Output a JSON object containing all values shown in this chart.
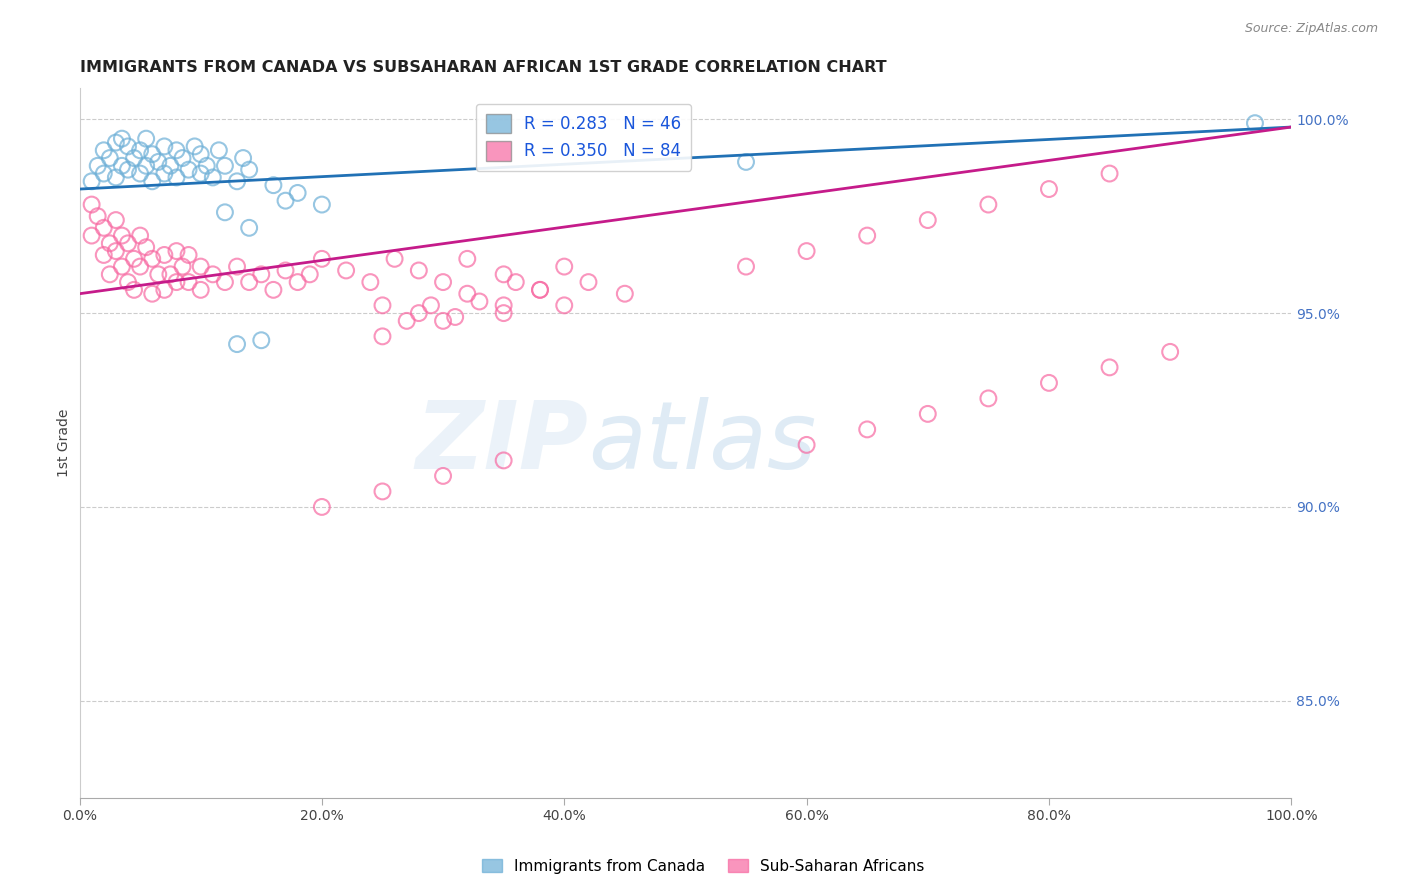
{
  "title": "IMMIGRANTS FROM CANADA VS SUBSAHARAN AFRICAN 1ST GRADE CORRELATION CHART",
  "source": "Source: ZipAtlas.com",
  "ylabel": "1st Grade",
  "legend_labels": [
    "Immigrants from Canada",
    "Sub-Saharan Africans"
  ],
  "legend_r_n": [
    {
      "r": 0.283,
      "n": 46
    },
    {
      "r": 0.35,
      "n": 84
    }
  ],
  "blue_color": "#6baed6",
  "pink_color": "#f768a1",
  "blue_line_color": "#2171b5",
  "pink_line_color": "#c51b8a",
  "watermark_zip": "ZIP",
  "watermark_atlas": "atlas",
  "xlim": [
    0.0,
    1.0
  ],
  "ylim": [
    0.825,
    1.008
  ],
  "right_yticks": [
    0.85,
    0.9,
    0.95,
    1.0
  ],
  "right_yticklabels": [
    "85.0%",
    "90.0%",
    "95.0%",
    "100.0%"
  ],
  "xtick_labels": [
    "0.0%",
    "20.0%",
    "40.0%",
    "60.0%",
    "80.0%",
    "100.0%"
  ],
  "xtick_values": [
    0.0,
    0.2,
    0.4,
    0.6,
    0.8,
    1.0
  ],
  "blue_x": [
    0.01,
    0.015,
    0.02,
    0.02,
    0.025,
    0.03,
    0.03,
    0.035,
    0.035,
    0.04,
    0.04,
    0.045,
    0.05,
    0.05,
    0.055,
    0.055,
    0.06,
    0.06,
    0.065,
    0.07,
    0.07,
    0.075,
    0.08,
    0.08,
    0.085,
    0.09,
    0.095,
    0.1,
    0.1,
    0.105,
    0.11,
    0.115,
    0.12,
    0.13,
    0.135,
    0.14,
    0.16,
    0.17,
    0.18,
    0.2,
    0.13,
    0.15,
    0.55,
    0.97,
    0.12,
    0.14
  ],
  "blue_y": [
    0.984,
    0.988,
    0.986,
    0.992,
    0.99,
    0.985,
    0.994,
    0.988,
    0.995,
    0.987,
    0.993,
    0.99,
    0.986,
    0.992,
    0.988,
    0.995,
    0.984,
    0.991,
    0.989,
    0.986,
    0.993,
    0.988,
    0.985,
    0.992,
    0.99,
    0.987,
    0.993,
    0.986,
    0.991,
    0.988,
    0.985,
    0.992,
    0.988,
    0.984,
    0.99,
    0.987,
    0.983,
    0.979,
    0.981,
    0.978,
    0.942,
    0.943,
    0.989,
    0.999,
    0.976,
    0.972
  ],
  "blue_trend_x": [
    0.0,
    1.0
  ],
  "blue_trend_y": [
    0.982,
    0.998
  ],
  "pink_x": [
    0.01,
    0.01,
    0.015,
    0.02,
    0.02,
    0.025,
    0.025,
    0.03,
    0.03,
    0.035,
    0.035,
    0.04,
    0.04,
    0.045,
    0.045,
    0.05,
    0.05,
    0.055,
    0.06,
    0.06,
    0.065,
    0.07,
    0.07,
    0.075,
    0.08,
    0.08,
    0.085,
    0.09,
    0.09,
    0.1,
    0.1,
    0.11,
    0.12,
    0.13,
    0.14,
    0.15,
    0.16,
    0.17,
    0.18,
    0.19,
    0.2,
    0.22,
    0.24,
    0.26,
    0.28,
    0.3,
    0.32,
    0.35,
    0.38,
    0.4,
    0.25,
    0.28,
    0.32,
    0.35,
    0.36,
    0.3,
    0.25,
    0.27,
    0.29,
    0.31,
    0.33,
    0.35,
    0.38,
    0.4,
    0.42,
    0.45,
    0.55,
    0.6,
    0.65,
    0.7,
    0.75,
    0.8,
    0.85,
    0.6,
    0.65,
    0.7,
    0.75,
    0.8,
    0.85,
    0.9,
    0.2,
    0.25,
    0.3,
    0.35
  ],
  "pink_y": [
    0.978,
    0.97,
    0.975,
    0.972,
    0.965,
    0.968,
    0.96,
    0.974,
    0.966,
    0.97,
    0.962,
    0.968,
    0.958,
    0.964,
    0.956,
    0.97,
    0.962,
    0.967,
    0.964,
    0.955,
    0.96,
    0.956,
    0.965,
    0.96,
    0.966,
    0.958,
    0.962,
    0.958,
    0.965,
    0.962,
    0.956,
    0.96,
    0.958,
    0.962,
    0.958,
    0.96,
    0.956,
    0.961,
    0.958,
    0.96,
    0.964,
    0.961,
    0.958,
    0.964,
    0.961,
    0.958,
    0.964,
    0.96,
    0.956,
    0.962,
    0.952,
    0.95,
    0.955,
    0.952,
    0.958,
    0.948,
    0.944,
    0.948,
    0.952,
    0.949,
    0.953,
    0.95,
    0.956,
    0.952,
    0.958,
    0.955,
    0.962,
    0.966,
    0.97,
    0.974,
    0.978,
    0.982,
    0.986,
    0.916,
    0.92,
    0.924,
    0.928,
    0.932,
    0.936,
    0.94,
    0.9,
    0.904,
    0.908,
    0.912
  ],
  "pink_trend_x": [
    0.0,
    1.0
  ],
  "pink_trend_y": [
    0.955,
    0.998
  ]
}
